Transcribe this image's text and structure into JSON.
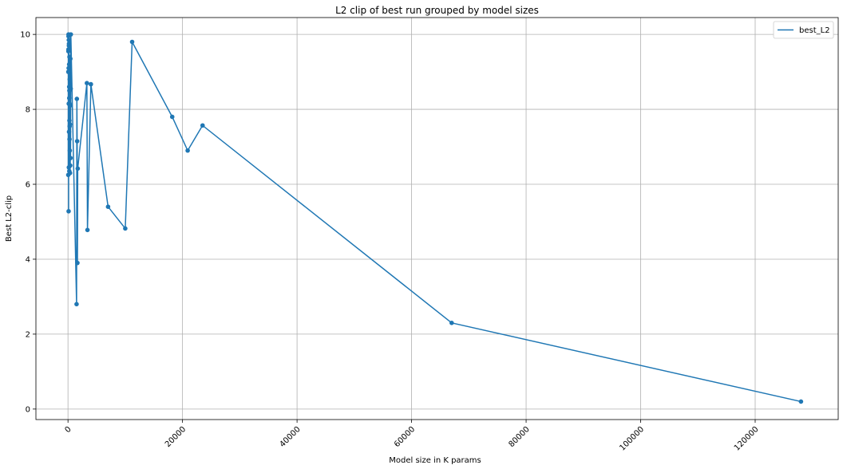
{
  "colors": {
    "series": "#1f77b4",
    "grid": "#b0b0b0",
    "background": "#ffffff"
  },
  "chart_data": {
    "type": "line",
    "title": "L2 clip of best run grouped by model sizes",
    "xlabel": "Model size in K params",
    "ylabel": "Best L2-clip",
    "xlim": [
      -5600,
      134500
    ],
    "ylim": [
      -0.28,
      10.45
    ],
    "xticks": [
      0,
      20000,
      40000,
      60000,
      80000,
      100000,
      120000
    ],
    "xtick_labels": [
      "0",
      "20000",
      "40000",
      "60000",
      "80000",
      "100000",
      "120000"
    ],
    "xtick_rotation": -45,
    "yticks": [
      0,
      2,
      4,
      6,
      8,
      10
    ],
    "ytick_labels": [
      "0",
      "2",
      "4",
      "6",
      "8",
      "10"
    ],
    "grid": true,
    "legend_position": "top-right",
    "markers": true,
    "series": [
      {
        "name": "best_L2",
        "x": [
          50,
          60,
          70,
          80,
          90,
          100,
          110,
          120,
          130,
          140,
          150,
          160,
          170,
          180,
          190,
          200,
          210,
          220,
          230,
          240,
          250,
          260,
          270,
          280,
          290,
          300,
          320,
          340,
          360,
          380,
          400,
          420,
          450,
          480,
          500,
          1500,
          1550,
          1600,
          1650,
          1700,
          3300,
          3400,
          4000,
          7000,
          10000,
          11200,
          18200,
          20900,
          23500,
          67000,
          128000
        ],
        "y": [
          6.25,
          9.0,
          9.55,
          9.6,
          9.95,
          10.0,
          5.28,
          9.1,
          8.15,
          9.85,
          6.45,
          9.7,
          9.75,
          7.4,
          9.6,
          9.2,
          8.6,
          8.3,
          6.35,
          8.5,
          7.7,
          9.4,
          7.2,
          8.15,
          7.55,
          8.8,
          6.9,
          7.6,
          6.3,
          8.1,
          6.5,
          9.35,
          6.7,
          8.55,
          10.0,
          2.8,
          8.28,
          7.15,
          3.9,
          6.42,
          8.7,
          4.78,
          8.67,
          5.4,
          4.82,
          9.8,
          7.8,
          6.9,
          7.57,
          2.3,
          0.2
        ]
      }
    ]
  }
}
